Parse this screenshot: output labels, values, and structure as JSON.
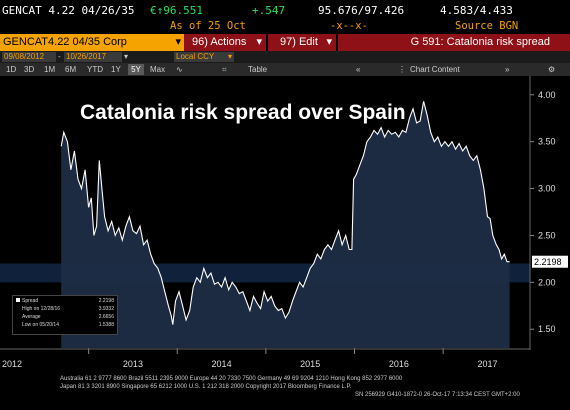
{
  "header": {
    "ticker": "GENCAT 4.22 04/26/35",
    "price": "€↑96.551",
    "change": "+.547",
    "bid_ask": "95.676/97.426",
    "yield_pair": "4.583/4.433",
    "as_of": "As of 25 Oct",
    "xx": "-x--x-",
    "source": "Source BGN"
  },
  "menubar": {
    "security": "GENCAT4.22 04/35 Corp",
    "actions": "96) Actions",
    "edit": "97) Edit",
    "page_title": "G 591: Catalonia risk spread"
  },
  "datebar": {
    "start": "09/08/2012",
    "end": "10/26/2017",
    "currency": "Local CCY"
  },
  "toolbar": {
    "periods": [
      "1D",
      "3D",
      "1M",
      "6M",
      "YTD",
      "1Y",
      "5Y",
      "Max"
    ],
    "selected": "5Y",
    "table": "Table",
    "chart_content": "Chart Content"
  },
  "chart_data": {
    "type": "line",
    "title": "Catalonia risk spread over Spain",
    "xlabel": "",
    "ylabel": "",
    "x_ticks": [
      "2012",
      "2013",
      "2014",
      "2015",
      "2016",
      "2017"
    ],
    "y_ticks": [
      "1.50",
      "2.00",
      "2.50",
      "3.00",
      "3.50",
      "4.00"
    ],
    "ylim": [
      1.3,
      4.2
    ],
    "last_value": "2.2198",
    "grid": true,
    "legend_position": "bottom-left",
    "series": [
      {
        "name": "Spread",
        "points": [
          [
            2012.69,
            3.45
          ],
          [
            2012.72,
            3.6
          ],
          [
            2012.76,
            3.5
          ],
          [
            2012.8,
            3.2
          ],
          [
            2012.84,
            3.4
          ],
          [
            2012.88,
            3.1
          ],
          [
            2012.92,
            3.0
          ],
          [
            2012.96,
            3.2
          ],
          [
            2013.0,
            2.8
          ],
          [
            2013.03,
            2.9
          ],
          [
            2013.06,
            2.5
          ],
          [
            2013.09,
            2.6
          ],
          [
            2013.12,
            3.3
          ],
          [
            2013.15,
            3.0
          ],
          [
            2013.18,
            2.7
          ],
          [
            2013.22,
            2.55
          ],
          [
            2013.26,
            2.65
          ],
          [
            2013.3,
            2.5
          ],
          [
            2013.34,
            2.58
          ],
          [
            2013.38,
            2.45
          ],
          [
            2013.42,
            2.6
          ],
          [
            2013.46,
            2.7
          ],
          [
            2013.5,
            2.55
          ],
          [
            2013.54,
            2.52
          ],
          [
            2013.58,
            2.6
          ],
          [
            2013.62,
            2.4
          ],
          [
            2013.66,
            2.45
          ],
          [
            2013.7,
            2.3
          ],
          [
            2013.74,
            2.2
          ],
          [
            2013.78,
            2.15
          ],
          [
            2013.82,
            2.05
          ],
          [
            2013.86,
            1.9
          ],
          [
            2013.9,
            1.75
          ],
          [
            2013.93,
            1.65
          ],
          [
            2013.95,
            1.55
          ],
          [
            2013.98,
            1.8
          ],
          [
            2014.02,
            1.9
          ],
          [
            2014.06,
            1.75
          ],
          [
            2014.1,
            1.6
          ],
          [
            2014.14,
            1.7
          ],
          [
            2014.18,
            1.95
          ],
          [
            2014.22,
            2.05
          ],
          [
            2014.26,
            2.0
          ],
          [
            2014.3,
            2.15
          ],
          [
            2014.34,
            2.05
          ],
          [
            2014.38,
            2.1
          ],
          [
            2014.42,
            1.98
          ],
          [
            2014.46,
            2.0
          ],
          [
            2014.5,
            1.95
          ],
          [
            2014.54,
            2.05
          ],
          [
            2014.58,
            1.92
          ],
          [
            2014.62,
            2.0
          ],
          [
            2014.66,
            1.95
          ],
          [
            2014.7,
            1.88
          ],
          [
            2014.74,
            1.9
          ],
          [
            2014.78,
            1.8
          ],
          [
            2014.82,
            1.7
          ],
          [
            2014.86,
            1.85
          ],
          [
            2014.9,
            1.78
          ],
          [
            2014.94,
            1.72
          ],
          [
            2014.98,
            1.9
          ],
          [
            2015.02,
            1.8
          ],
          [
            2015.06,
            1.85
          ],
          [
            2015.1,
            1.75
          ],
          [
            2015.14,
            1.7
          ],
          [
            2015.18,
            1.72
          ],
          [
            2015.22,
            1.62
          ],
          [
            2015.26,
            1.68
          ],
          [
            2015.3,
            1.8
          ],
          [
            2015.34,
            1.9
          ],
          [
            2015.38,
            2.0
          ],
          [
            2015.42,
            1.95
          ],
          [
            2015.46,
            2.05
          ],
          [
            2015.5,
            2.15
          ],
          [
            2015.54,
            2.2
          ],
          [
            2015.58,
            2.3
          ],
          [
            2015.62,
            2.25
          ],
          [
            2015.66,
            2.35
          ],
          [
            2015.7,
            2.4
          ],
          [
            2015.74,
            2.35
          ],
          [
            2015.78,
            2.45
          ],
          [
            2015.82,
            2.55
          ],
          [
            2015.86,
            2.4
          ],
          [
            2015.9,
            2.5
          ],
          [
            2015.94,
            2.35
          ],
          [
            2015.97,
            2.35
          ],
          [
            2015.99,
            3.1
          ],
          [
            2016.02,
            3.15
          ],
          [
            2016.06,
            3.25
          ],
          [
            2016.1,
            3.35
          ],
          [
            2016.14,
            3.5
          ],
          [
            2016.18,
            3.55
          ],
          [
            2016.22,
            3.62
          ],
          [
            2016.26,
            3.58
          ],
          [
            2016.3,
            3.65
          ],
          [
            2016.34,
            3.55
          ],
          [
            2016.38,
            3.62
          ],
          [
            2016.42,
            3.58
          ],
          [
            2016.46,
            3.6
          ],
          [
            2016.5,
            3.55
          ],
          [
            2016.54,
            3.62
          ],
          [
            2016.58,
            3.6
          ],
          [
            2016.62,
            3.75
          ],
          [
            2016.66,
            3.85
          ],
          [
            2016.7,
            3.7
          ],
          [
            2016.74,
            3.72
          ],
          [
            2016.78,
            3.93
          ],
          [
            2016.82,
            3.78
          ],
          [
            2016.86,
            3.6
          ],
          [
            2016.9,
            3.5
          ],
          [
            2016.94,
            3.55
          ],
          [
            2016.98,
            3.45
          ],
          [
            2017.02,
            3.5
          ],
          [
            2017.06,
            3.45
          ],
          [
            2017.1,
            3.5
          ],
          [
            2017.14,
            3.42
          ],
          [
            2017.18,
            3.48
          ],
          [
            2017.22,
            3.4
          ],
          [
            2017.26,
            3.45
          ],
          [
            2017.3,
            3.35
          ],
          [
            2017.34,
            3.3
          ],
          [
            2017.38,
            3.35
          ],
          [
            2017.42,
            3.2
          ],
          [
            2017.46,
            3.0
          ],
          [
            2017.5,
            2.7
          ],
          [
            2017.53,
            2.68
          ],
          [
            2017.56,
            2.5
          ],
          [
            2017.6,
            2.4
          ],
          [
            2017.63,
            2.35
          ],
          [
            2017.66,
            2.25
          ],
          [
            2017.69,
            2.3
          ],
          [
            2017.72,
            2.22
          ],
          [
            2017.75,
            2.2198
          ]
        ]
      }
    ],
    "stats": [
      {
        "label": "Spread",
        "value": "2.2198"
      },
      {
        "label": "High on 12/28/16",
        "value": "3.9332"
      },
      {
        "label": "Average",
        "value": "2.6656"
      },
      {
        "label": "Low on 05/20/14",
        "value": "1.5388"
      }
    ],
    "colors": {
      "fill": "#1d2d46",
      "line": "#ffffff",
      "band": "#10213b"
    }
  },
  "footer": {
    "line1": "Australia 61 2 9777 8600  Brazil 5511 2395 9000  Europe 44 20 7330 7500  Germany 49 69 9204 1210  Hong Kong 852 2977 6000",
    "line2": "Japan 81 3 3201 8900           Singapore 65 6212 1000         U.S. 1 212 318 2000           Copyright 2017 Bloomberg Finance L.P.",
    "line3": "SN 256929 G410-1872-0 26-Oct-17  7:13:34 CEST GMT+2:00"
  }
}
